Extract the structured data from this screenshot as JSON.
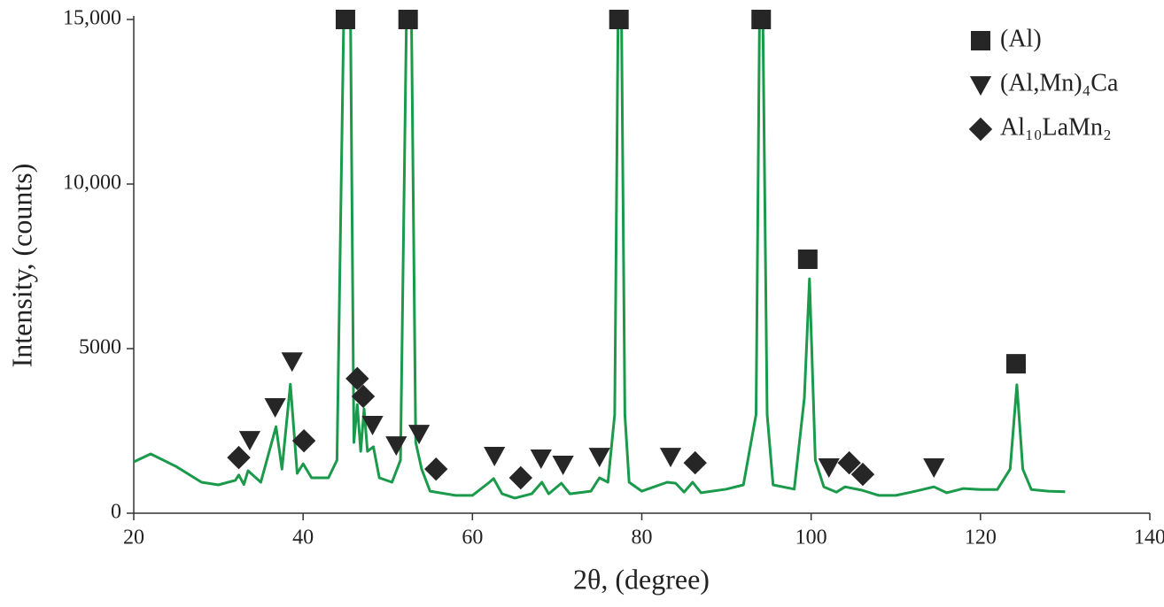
{
  "chart_data": {
    "type": "line",
    "xlabel": "2θ, (degree)",
    "ylabel": "Intensity, (counts)",
    "xlim": [
      20,
      140
    ],
    "xticks": [
      20,
      40,
      60,
      80,
      100,
      120,
      140
    ],
    "ylim": [
      0,
      15000
    ],
    "yticks": [
      0,
      5000,
      {
        "value": 10000,
        "label": "10,000"
      },
      {
        "value": 15000,
        "label": "15,000"
      }
    ],
    "legend": "upper right",
    "series": [
      {
        "color": "#1a9a4a",
        "x": [
          20,
          22,
          25,
          28,
          30,
          32,
          32.4,
          33,
          33.5,
          35,
          36.8,
          37.5,
          38.5,
          39.3,
          40,
          41,
          43,
          44,
          44.8,
          45.6,
          46,
          46.4,
          46.8,
          47.2,
          47.6,
          48.3,
          49,
          50.5,
          51.5,
          52.2,
          52.8,
          53.3,
          54,
          55,
          58,
          60,
          62,
          62.5,
          63.5,
          65,
          67,
          68.2,
          69,
          70.5,
          71.5,
          74,
          75,
          76,
          76.8,
          77.2,
          77.6,
          78,
          78.5,
          80,
          83,
          84,
          85,
          86,
          87,
          90,
          92,
          93.5,
          93.9,
          94.3,
          94.8,
          95.5,
          98,
          99.2,
          99.8,
          100.5,
          101.5,
          103,
          104,
          106,
          108,
          110,
          112,
          114.5,
          116,
          118,
          120,
          122,
          123.5,
          124.3,
          125,
          126,
          128,
          130
        ],
        "values": [
          1560,
          1800,
          1420,
          940,
          860,
          1000,
          1160,
          870,
          1290,
          940,
          2630,
          1340,
          3920,
          1210,
          1500,
          1075,
          1075,
          1610,
          15000,
          15000,
          2150,
          3300,
          1880,
          3170,
          1880,
          2020,
          1075,
          940,
          1610,
          15000,
          15000,
          2150,
          1340,
          670,
          540,
          540,
          940,
          1050,
          590,
          460,
          590,
          940,
          590,
          910,
          590,
          670,
          1075,
          940,
          3000,
          15000,
          15000,
          3000,
          940,
          670,
          940,
          910,
          640,
          940,
          620,
          730,
          860,
          3000,
          15000,
          15000,
          3000,
          860,
          730,
          3500,
          7120,
          1610,
          800,
          640,
          800,
          700,
          540,
          540,
          650,
          800,
          620,
          750,
          720,
          720,
          1340,
          3900,
          1340,
          720,
          670,
          650
        ]
      },
      {
        "name": "(Al)",
        "marker": "square",
        "color": "#262626",
        "x": [
          45.0,
          52.4,
          77.3,
          94.1,
          99.6,
          124.2
        ],
        "values": [
          15000,
          15000,
          15000,
          15000,
          7715,
          4540
        ]
      },
      {
        "name": "(Al,Mn)₄Ca",
        "marker": "triangle",
        "color": "#262626",
        "x": [
          33.7,
          36.7,
          38.7,
          48.2,
          51.0,
          53.7,
          62.6,
          68.1,
          70.7,
          75.0,
          83.4,
          102.1,
          114.5
        ],
        "values": [
          2230,
          3230,
          4620,
          2690,
          2070,
          2420,
          1750,
          1670,
          1480,
          1720,
          1720,
          1400,
          1400
        ]
      },
      {
        "name": "Al₁₀LaMn₂",
        "marker": "diamond",
        "color": "#262626",
        "x": [
          32.4,
          40.1,
          46.4,
          47.1,
          55.7,
          65.7,
          86.3,
          104.5,
          106.1
        ],
        "values": [
          1690,
          2200,
          4090,
          3550,
          1340,
          1075,
          1530,
          1530,
          1180
        ]
      }
    ]
  }
}
